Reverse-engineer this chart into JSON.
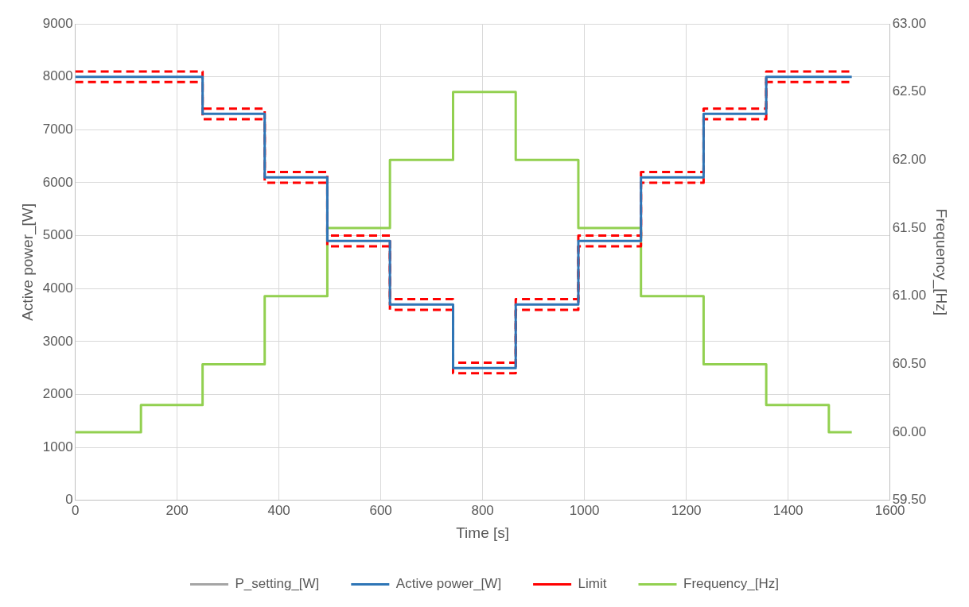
{
  "chart_data": {
    "type": "step",
    "xlabel": "Time [s]",
    "ylabel": "Active power_[W]",
    "y2label": "Frequency_[Hz]",
    "x": [
      0,
      129,
      250,
      372,
      495,
      618,
      742,
      865,
      988,
      1111,
      1234,
      1357,
      1480,
      1525
    ],
    "series": [
      {
        "name": "P_setting_[W]",
        "color": "#a5a5a5",
        "values": [
          null,
          null,
          null,
          null,
          null,
          null,
          null,
          null,
          null,
          null,
          null,
          null,
          null,
          null
        ]
      },
      {
        "name": "Active power_[W]",
        "color": "#2e75b6",
        "values": [
          8000,
          8000,
          7300,
          6100,
          4900,
          3700,
          2500,
          3700,
          4900,
          6100,
          7300,
          8000,
          8000,
          8000
        ]
      },
      {
        "name": "Limit",
        "color": "#ff0000",
        "line_style": "dashed",
        "values": [
          8100,
          8100,
          7400,
          6200,
          5000,
          3800,
          2600,
          3800,
          5000,
          6200,
          7400,
          8100,
          8100,
          8100
        ]
      },
      {
        "color": "#ff0000",
        "line_style": "dashed",
        "values": [
          7900,
          7900,
          7200,
          6000,
          4800,
          3600,
          2400,
          3600,
          4800,
          6000,
          7200,
          7900,
          7900,
          7900
        ]
      },
      {
        "name": "Frequency_[Hz]",
        "color": "#92d050",
        "axis": "y2",
        "values": [
          60.0,
          60.2,
          60.5,
          61.0,
          61.5,
          62.0,
          62.5,
          62.0,
          61.5,
          61.0,
          60.5,
          60.2,
          60.0,
          60.0
        ]
      }
    ],
    "xlim": [
      0,
      1600
    ],
    "xticks": [
      0,
      200,
      400,
      600,
      800,
      1000,
      1200,
      1400,
      1600
    ],
    "ylim": [
      0,
      9000
    ],
    "yticks": [
      0,
      1000,
      2000,
      3000,
      4000,
      5000,
      6000,
      7000,
      8000,
      9000
    ],
    "y2lim": [
      59.5,
      63
    ],
    "y2ticks": [
      {
        "value": 59.5,
        "label": "59.50"
      },
      {
        "value": 60,
        "label": "60.00"
      },
      {
        "value": 60.5,
        "label": "60.50"
      },
      {
        "value": 61,
        "label": "61.00"
      },
      {
        "value": 61.5,
        "label": "61.50"
      },
      {
        "value": 62,
        "label": "62.00"
      },
      {
        "value": 62.5,
        "label": "62.50"
      },
      {
        "value": 63,
        "label": "63.00"
      }
    ],
    "grid": true,
    "legend": "bottom",
    "marker": "none",
    "line_style": "solid"
  }
}
